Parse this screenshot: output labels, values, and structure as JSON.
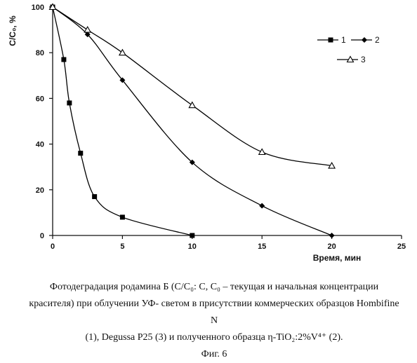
{
  "chart_data": {
    "type": "line",
    "title": "",
    "xlabel": "Время, мин",
    "ylabel": "C/C₀, %",
    "xlim": [
      0,
      25
    ],
    "ylim": [
      0,
      100
    ],
    "x_ticks": [
      0,
      5,
      10,
      15,
      20,
      25
    ],
    "y_ticks": [
      0,
      20,
      40,
      60,
      80,
      100
    ],
    "grid": false,
    "legend_position": "top-right",
    "series": [
      {
        "name": "1",
        "marker": "square",
        "color": "#000000",
        "x": [
          0,
          0.8,
          1.2,
          2,
          3,
          5,
          10
        ],
        "y": [
          100,
          77,
          58,
          36,
          17,
          8,
          0
        ]
      },
      {
        "name": "2",
        "marker": "diamond",
        "color": "#000000",
        "x": [
          0,
          2.5,
          5,
          10,
          15,
          20
        ],
        "y": [
          100,
          88,
          68,
          32,
          13,
          0
        ]
      },
      {
        "name": "3",
        "marker": "triangle-open",
        "color": "#000000",
        "x": [
          0,
          2.5,
          5,
          10,
          15,
          20
        ],
        "y": [
          100,
          90,
          80,
          57,
          36.5,
          30.5
        ]
      }
    ]
  },
  "caption": {
    "line1": "Фотодеградация родамина Б (C/C₀: C, C₀ – текущая и начальная концентрации",
    "line2": "красителя) при облучении УФ- светом в присутствии коммерческих образцов Hombifine N",
    "line3": "(1), Degussa P25 (3) и полученного образца η-TiO₂:2%V⁴⁺ (2).",
    "fig_label": "Фиг. 6"
  }
}
